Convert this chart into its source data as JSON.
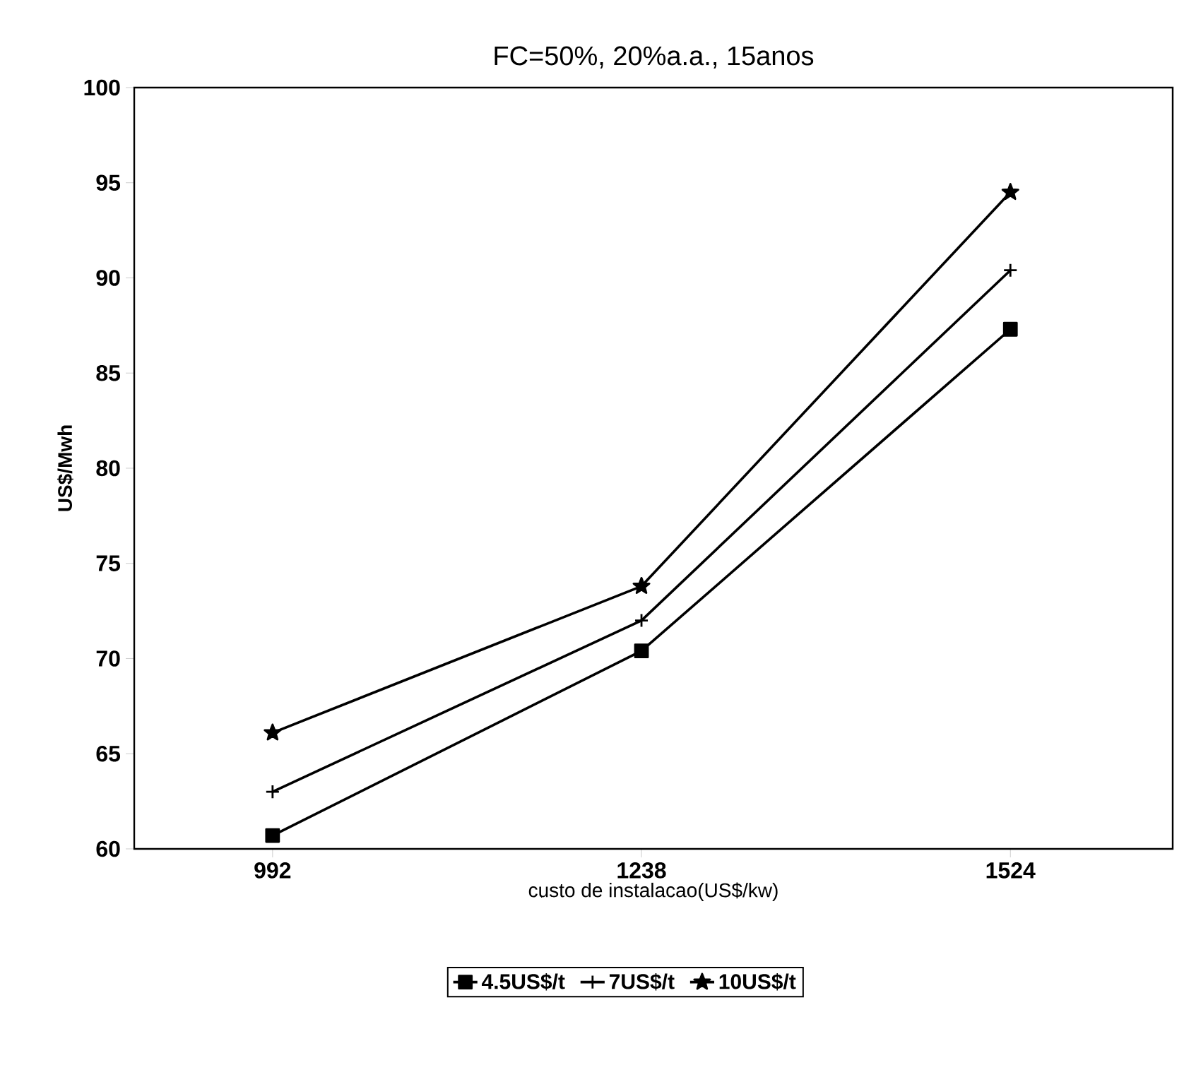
{
  "chart_data": {
    "type": "line",
    "title": "FC=50%, 20%a.a., 15anos",
    "xlabel": "custo de instalacao(US$/kw)",
    "ylabel": "US$/Mwh",
    "categories": [
      "992",
      "1238",
      "1524"
    ],
    "series": [
      {
        "name": "4.5US$/t",
        "color": "#000000",
        "marker": "square",
        "values": [
          60.7,
          70.4,
          87.3
        ]
      },
      {
        "name": "7US$/t",
        "color": "#000000",
        "marker": "cross",
        "values": [
          63.0,
          72.0,
          90.4
        ]
      },
      {
        "name": "10US$/t",
        "color": "#000000",
        "marker": "star",
        "values": [
          66.1,
          73.8,
          94.5
        ]
      }
    ],
    "ylim": [
      60,
      100
    ],
    "yticks": [
      60,
      65,
      70,
      75,
      80,
      85,
      90,
      95,
      100
    ],
    "legend": "bottom",
    "line_style": "solid"
  }
}
